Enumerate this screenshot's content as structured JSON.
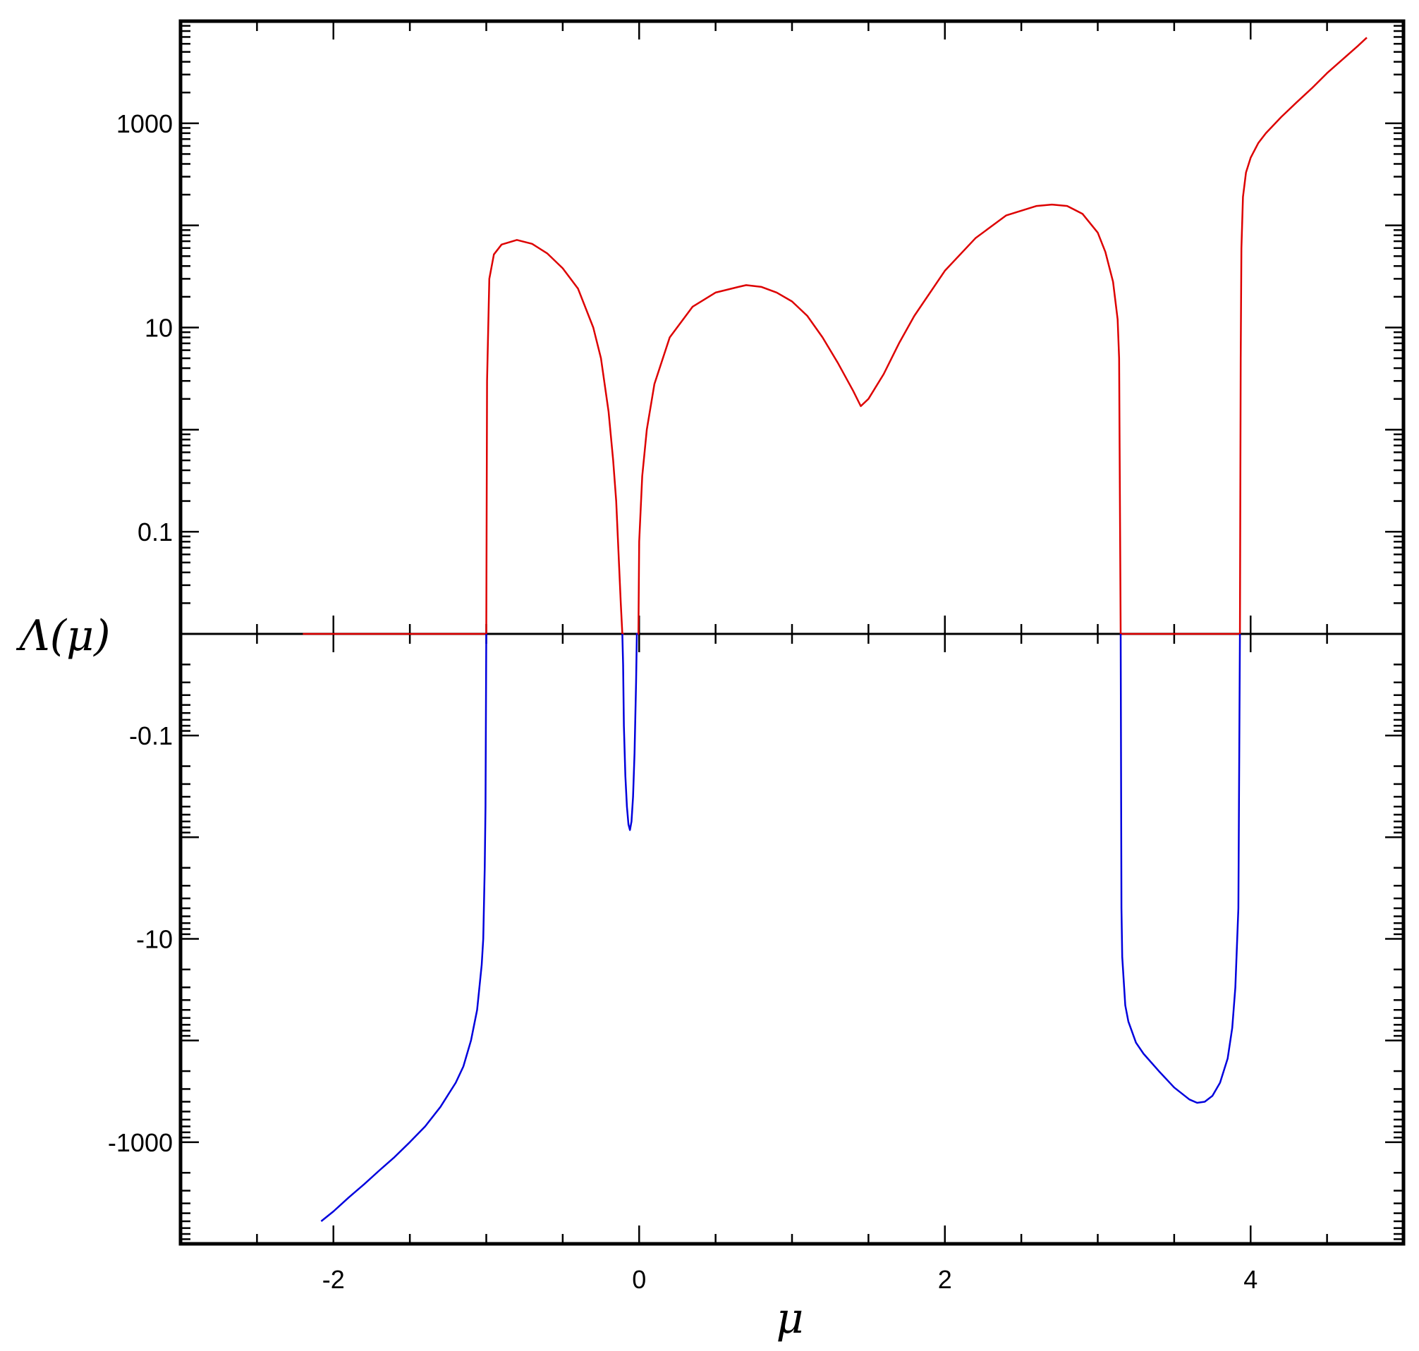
{
  "chart_data": {
    "type": "line",
    "title": "",
    "xlabel": "μ",
    "ylabel": "Λ(μ)",
    "xlim": [
      -3,
      5
    ],
    "ylim": [
      -10000,
      10000
    ],
    "yscale": "symmetric-log (log10 on each side of a zero line)",
    "grid": false,
    "legend": "none",
    "x_ticks": [
      -2,
      0,
      2,
      4
    ],
    "x_tick_labels": [
      "-2",
      "0",
      "2",
      "4"
    ],
    "y_ticks": [
      1000,
      10,
      0.1,
      -0.1,
      -10,
      -1000
    ],
    "y_tick_labels": [
      "1000",
      "10",
      "0.1",
      "-0.1",
      "-10",
      "-1000"
    ],
    "colors": {
      "positive": "#dd0000",
      "negative": "#0000dd",
      "zero_line": "#000000"
    },
    "series": [
      {
        "color": "#dd0000",
        "segments": [
          {
            "x": [
              -2.2,
              -1.0
            ],
            "y": [
              0,
              0
            ]
          },
          {
            "x": [
              -1.0,
              -0.995,
              -0.98,
              -0.95,
              -0.9,
              -0.8,
              -0.7,
              -0.6,
              -0.5,
              -0.4,
              -0.3,
              -0.25,
              -0.2,
              -0.17,
              -0.15,
              -0.12,
              -0.11,
              -0.1
            ],
            "y": [
              0,
              3,
              30,
              52,
              65,
              72,
              66,
              53,
              38,
              24,
              10,
              5,
              1.5,
              0.5,
              0.2,
              0.02,
              0.005,
              0
            ]
          },
          {
            "x": [
              -0.01,
              -0.005,
              0,
              0.02,
              0.05,
              0.1,
              0.2,
              0.35,
              0.5,
              0.65,
              0.7,
              0.8,
              0.9,
              1.0,
              1.1,
              1.2,
              1.3,
              1.4,
              1.45,
              1.5,
              1.6,
              1.7,
              1.8,
              2.0,
              2.2,
              2.4,
              2.6,
              2.7,
              2.8,
              2.9,
              3.0,
              3.05,
              3.1,
              3.13,
              3.14,
              3.15
            ],
            "y": [
              0,
              0.01,
              0.08,
              0.35,
              1,
              2.8,
              8,
              16,
              22,
              25,
              26,
              25,
              22,
              18,
              13,
              8,
              4.5,
              2.4,
              1.7,
              2.0,
              3.5,
              7,
              13,
              36,
              75,
              125,
              155,
              160,
              155,
              130,
              85,
              55,
              28,
              12,
              5,
              0
            ]
          },
          {
            "x": [
              3.15,
              3.93
            ],
            "y": [
              0,
              0
            ]
          },
          {
            "x": [
              3.93,
              3.935,
              3.94,
              3.95,
              3.97,
              4.0,
              4.05,
              4.1,
              4.2,
              4.3,
              4.4,
              4.5,
              4.6,
              4.7,
              4.76
            ],
            "y": [
              0,
              5,
              60,
              190,
              330,
              460,
              640,
              800,
              1150,
              1600,
              2200,
              3100,
              4200,
              5700,
              6900
            ]
          }
        ]
      },
      {
        "color": "#0000dd",
        "segments": [
          {
            "x": [
              -2.08,
              -2.0,
              -1.9,
              -1.8,
              -1.7,
              -1.6,
              -1.5,
              -1.4,
              -1.3,
              -1.2,
              -1.15,
              -1.1,
              -1.06,
              -1.03,
              -1.02,
              -1.01,
              -1.005,
              -1.0
            ],
            "y": [
              -6000,
              -4800,
              -3500,
              -2600,
              -1900,
              -1400,
              -1000,
              -700,
              -450,
              -260,
              -180,
              -100,
              -50,
              -18,
              -10,
              -2,
              -0.5,
              0
            ]
          },
          {
            "x": [
              -0.11,
              -0.105,
              -0.1,
              -0.09,
              -0.08,
              -0.07,
              -0.06,
              -0.05,
              -0.04,
              -0.03,
              -0.02,
              -0.015,
              -0.01
            ],
            "y": [
              0,
              -0.02,
              -0.08,
              -0.25,
              -0.5,
              -0.75,
              -0.85,
              -0.7,
              -0.4,
              -0.15,
              -0.03,
              -0.01,
              0
            ]
          },
          {
            "x": [
              3.15,
              3.155,
              3.16,
              3.18,
              3.2,
              3.25,
              3.3,
              3.4,
              3.5,
              3.6,
              3.65,
              3.7,
              3.75,
              3.8,
              3.85,
              3.88,
              3.9,
              3.92,
              3.93
            ],
            "y": [
              0,
              -5,
              -15,
              -45,
              -65,
              -105,
              -135,
              -200,
              -290,
              -380,
              -410,
              -400,
              -350,
              -260,
              -150,
              -75,
              -30,
              -5,
              0
            ]
          }
        ]
      }
    ]
  }
}
